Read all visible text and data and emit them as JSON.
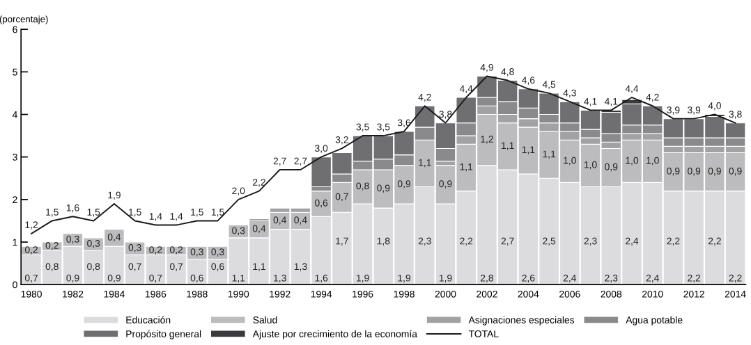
{
  "chart_data": {
    "type": "bar",
    "stacked": true,
    "ylabel": "(porcentaje)",
    "categories": [
      "1980",
      null,
      "1982",
      null,
      "1984",
      null,
      "1986",
      null,
      "1988",
      null,
      "1990",
      null,
      "1992",
      null,
      "1994",
      null,
      "1996",
      null,
      "1998",
      null,
      "2000",
      null,
      "2002",
      null,
      "2004",
      null,
      "2006",
      null,
      "2008",
      null,
      "2010",
      null,
      "2012",
      null,
      "2014"
    ],
    "ylim": [
      0,
      6
    ],
    "yticks": [
      0,
      1,
      2,
      3,
      4,
      5,
      6
    ],
    "grid": false,
    "legend": "bottom",
    "series": [
      {
        "name": "Educación",
        "color": "#dcdcde",
        "values": [
          0.7,
          0.8,
          0.9,
          0.8,
          0.9,
          0.7,
          0.7,
          0.7,
          0.6,
          0.6,
          1.1,
          1.1,
          1.3,
          1.3,
          1.6,
          1.7,
          1.9,
          1.8,
          1.9,
          2.3,
          1.9,
          2.2,
          2.8,
          2.7,
          2.6,
          2.5,
          2.4,
          2.3,
          2.3,
          2.4,
          2.4,
          2.2,
          2.2,
          2.2,
          2.2
        ],
        "value_labels": [
          "0,7",
          "0,8",
          "0,9",
          "0,8",
          "0,9",
          "0,7",
          "0,7",
          "0,7",
          "0,6",
          "0,6",
          "1,1",
          "1,1",
          "1,3",
          "1,3",
          "1,6",
          "1,7",
          "1,9",
          "1,8",
          "1,9",
          "2,3",
          "1,9",
          "2,2",
          "2,8",
          "2,7",
          "2,6",
          "2,5",
          "2,4",
          "2,3",
          "2,3",
          "2,4",
          "2,4",
          "2,2",
          "2,2",
          "2,2",
          "2,2"
        ]
      },
      {
        "name": "Salud",
        "color": "#bcbcbe",
        "values": [
          0.2,
          0.2,
          0.3,
          0.3,
          0.4,
          0.3,
          0.2,
          0.2,
          0.3,
          0.3,
          0.3,
          0.4,
          0.4,
          0.4,
          0.6,
          0.7,
          0.8,
          0.9,
          0.9,
          1.1,
          0.9,
          1.1,
          1.2,
          1.1,
          1.1,
          1.1,
          1.0,
          1.0,
          0.9,
          1.0,
          1.0,
          0.9,
          0.9,
          0.9,
          0.9
        ],
        "value_labels": [
          "0,2",
          "0,2",
          "0,3",
          "0,3",
          "0,4",
          "0,3",
          "0,2",
          "0,2",
          "0,3",
          "0,3",
          "0,3",
          "0,4",
          "0,4",
          "0,4",
          "0,6",
          "0,7",
          "0,8",
          "0,9",
          "0,9",
          "1,1",
          "0,9",
          "1,1",
          "1,2",
          "1,1",
          "1,1",
          "1,1",
          "1,0",
          "1,0",
          "0,9",
          "1,0",
          "1,0",
          "0,9",
          "0,9",
          "0,9",
          "0,9"
        ]
      },
      {
        "name": "Asignaciones especiales",
        "color": "#a2a2a4",
        "values": [
          0,
          0,
          0,
          0,
          0,
          0,
          0,
          0,
          0,
          0,
          0,
          0.05,
          0.1,
          0.1,
          0,
          0,
          0,
          0,
          0,
          0,
          0.1,
          0.2,
          0.2,
          0.2,
          0.2,
          0.2,
          0.2,
          0.15,
          0.15,
          0.15,
          0.15,
          0.15,
          0.15,
          0.15,
          0.15
        ]
      },
      {
        "name": "Agua potable",
        "color": "#8a8a8d",
        "values": [
          0,
          0,
          0,
          0,
          0,
          0,
          0,
          0,
          0,
          0,
          0,
          0,
          0,
          0,
          0.1,
          0.2,
          0.2,
          0.25,
          0.25,
          0.3,
          0.3,
          0.3,
          0.2,
          0.3,
          0.25,
          0.2,
          0.2,
          0.2,
          0.2,
          0.2,
          0.2,
          0.2,
          0.2,
          0.2,
          0.2
        ]
      },
      {
        "name": "Propósito general",
        "color": "#6f6f72",
        "values": [
          0,
          0,
          0,
          0,
          0,
          0,
          0,
          0,
          0,
          0,
          0,
          0,
          0,
          0,
          0.7,
          0.5,
          0.6,
          0.55,
          0.55,
          0.5,
          0.6,
          0.6,
          0.5,
          0.5,
          0.45,
          0.5,
          0.5,
          0.45,
          0.5,
          0.5,
          0.45,
          0.45,
          0.45,
          0.5,
          0.35
        ]
      },
      {
        "name": "Ajuste por crecimiento de la economía",
        "color": "#3a3a3c",
        "values": [
          0,
          0,
          0,
          0,
          0,
          0,
          0,
          0,
          0,
          0,
          0,
          0,
          0,
          0,
          0,
          0,
          0,
          0,
          0,
          0,
          0,
          0,
          0,
          0,
          0,
          0,
          0,
          0,
          0.05,
          0.1,
          0,
          0,
          0,
          0.05,
          0
        ]
      },
      {
        "name": "TOTAL",
        "type": "line",
        "color": "#1a1a1a",
        "values": [
          1.2,
          1.5,
          1.6,
          1.5,
          1.9,
          1.5,
          1.4,
          1.4,
          1.5,
          1.5,
          2.0,
          2.2,
          2.7,
          2.7,
          3.0,
          3.2,
          3.5,
          3.5,
          3.6,
          4.2,
          3.8,
          4.4,
          4.9,
          4.8,
          4.6,
          4.5,
          4.3,
          4.1,
          4.1,
          4.4,
          4.2,
          3.9,
          3.9,
          4.0,
          3.8
        ],
        "value_labels": [
          "1,2",
          "1,5",
          "1,6",
          "1,5",
          "1,9",
          "1,5",
          "1,4",
          "1,4",
          "1,5",
          "1,5",
          "2,0",
          "2,2",
          "2,7",
          "2,7",
          "3,0",
          "3,2",
          "3,5",
          "3,5",
          "3,6",
          "4,2",
          "3,8",
          "4,4",
          "4,9",
          "4,8",
          "4,6",
          "4,5",
          "4,3",
          "4,1",
          "4,1",
          "4,4",
          "4,2",
          "3,9",
          "3,9",
          "4,0",
          "3,8"
        ]
      }
    ]
  }
}
